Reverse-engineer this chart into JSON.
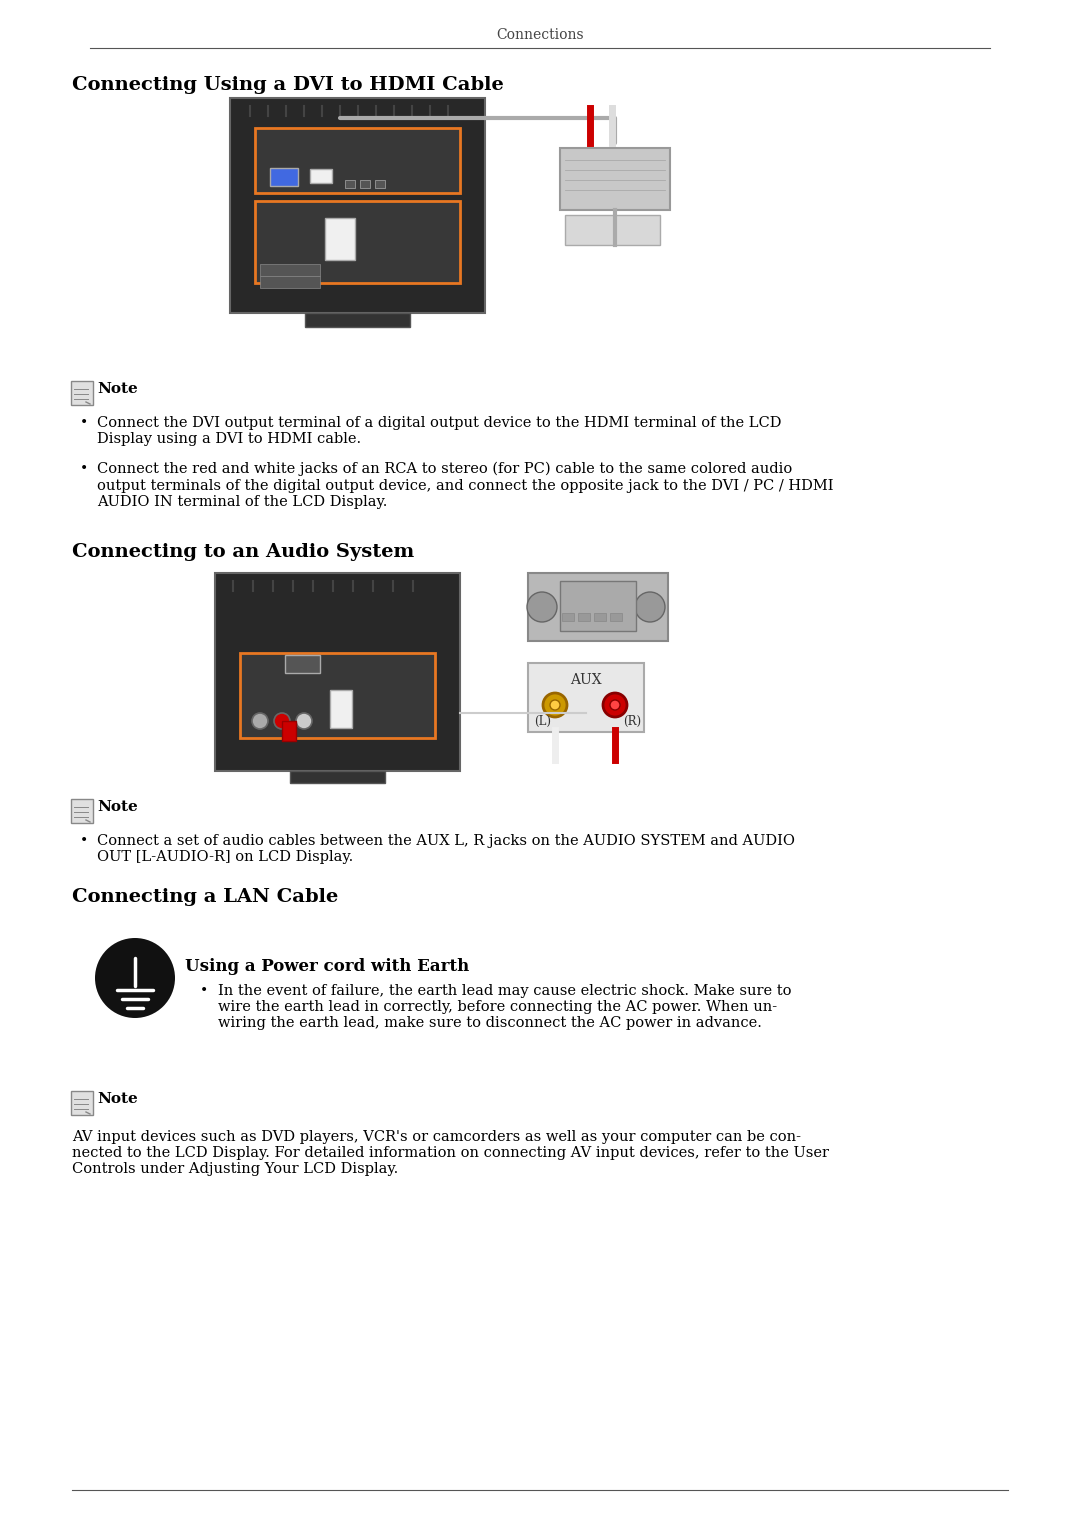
{
  "page_title": "Connections",
  "bg_color": "#ffffff",
  "text_color": "#000000",
  "section1_title": "Connecting Using a DVI to HDMI Cable",
  "section2_title": "Connecting to an Audio System",
  "section3_title": "Connecting a LAN Cable",
  "note_bullet1_s1": "Connect the DVI output terminal of a digital output device to the HDMI terminal of the LCD\nDisplay using a DVI to HDMI cable.",
  "note_bullet2_s1": "Connect the red and white jacks of an RCA to stereo (for PC) cable to the same colored audio\noutput terminals of the digital output device, and connect the opposite jack to the DVI / PC / HDMI\nAUDIO IN terminal of the LCD Display.",
  "note_bullet1_s2": "Connect a set of audio cables between the AUX L, R jacks on the AUDIO SYSTEM and AUDIO\nOUT [L-AUDIO-R] on LCD Display.",
  "earth_title": "Using a Power cord with Earth",
  "earth_text": "In the event of failure, the earth lead may cause electric shock. Make sure to\nwire the earth lead in correctly, before connecting the AC power. When un-\nwiring the earth lead, make sure to disconnect the AC power in advance.",
  "final_note": "AV input devices such as DVD players, VCR's or camcorders as well as your computer can be con-\nnected to the LCD Display. For detailed information on connecting AV input devices, refer to the User\nControls under Adjusting Your LCD Display.",
  "orange_color": "#E87722",
  "gray_color": "#808080",
  "dark_gray": "#404040",
  "light_gray": "#C0C0C0",
  "red_color": "#CC0000",
  "blue_color": "#4169E1",
  "aux_label": "AUX",
  "aux_l_label": "(L)",
  "aux_r_label": "(R)"
}
